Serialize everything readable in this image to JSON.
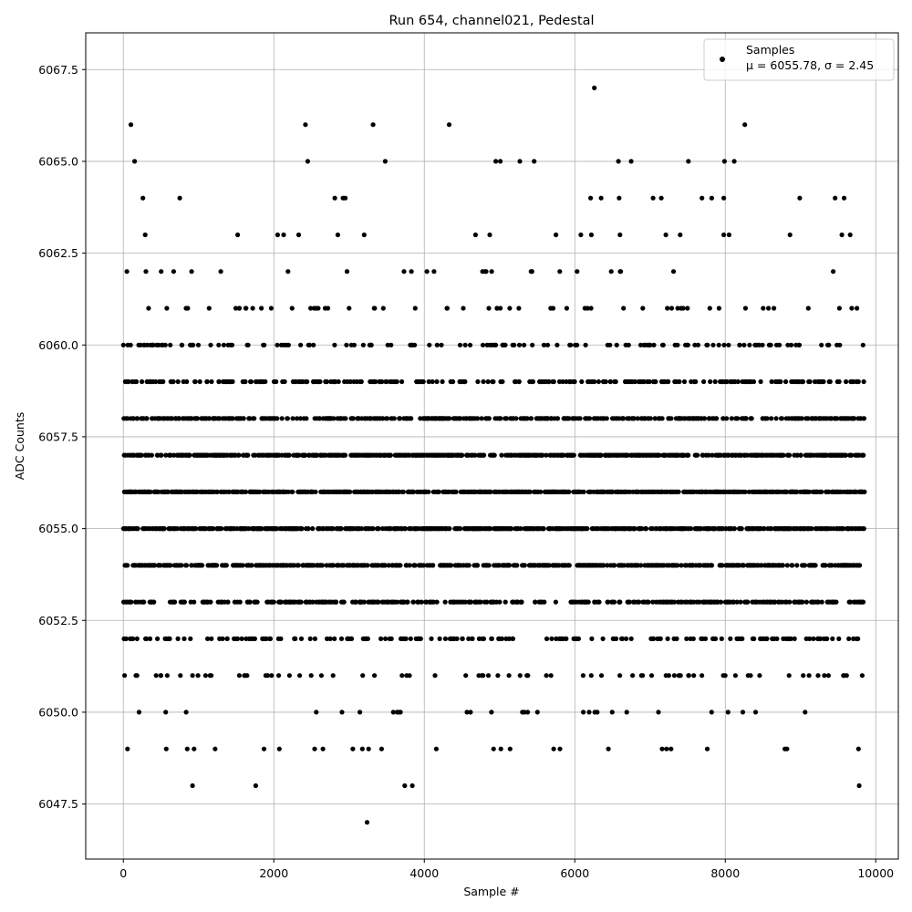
{
  "chart_data": {
    "type": "scatter",
    "title": "Run 654, channel021, Pedestal",
    "xlabel": "Sample #",
    "ylabel": "ADC Counts",
    "xlim": [
      -500,
      10300
    ],
    "ylim": [
      6046.0,
      6068.5
    ],
    "xticks": [
      0,
      2000,
      4000,
      6000,
      8000,
      10000
    ],
    "xtick_labels": [
      "0",
      "2000",
      "4000",
      "6000",
      "8000",
      "10000"
    ],
    "yticks": [
      6047.5,
      6050.0,
      6052.5,
      6055.0,
      6057.5,
      6060.0,
      6062.5,
      6065.0,
      6067.5
    ],
    "ytick_labels": [
      "6047.5",
      "6050.0",
      "6052.5",
      "6055.0",
      "6057.5",
      "6060.0",
      "6062.5",
      "6065.0",
      "6067.5"
    ],
    "grid": true,
    "legend": {
      "position": "top-right",
      "entries": [
        {
          "label": "Samples",
          "stats": "μ = 6055.78, σ = 2.45"
        }
      ]
    },
    "marker_color": "#000000",
    "series": [
      {
        "name": "Samples",
        "x_range": [
          0,
          9850
        ],
        "mean": 6055.78,
        "std": 2.45,
        "points": [
          [
            100,
            6066
          ],
          [
            150,
            6065
          ],
          [
            260,
            6064
          ],
          [
            290,
            6063
          ],
          [
            300,
            6062
          ],
          [
            280,
            6060
          ],
          [
            60,
            6060
          ],
          [
            55,
            6049
          ],
          [
            920,
            6048
          ],
          [
            750,
            6064
          ],
          [
            780,
            6060
          ],
          [
            1760,
            6048
          ],
          [
            2420,
            6066
          ],
          [
            2450,
            6065
          ],
          [
            2330,
            6063
          ],
          [
            2810,
            6064
          ],
          [
            2920,
            6064
          ],
          [
            2950,
            6064
          ],
          [
            2850,
            6063
          ],
          [
            3240,
            6047
          ],
          [
            3320,
            6066
          ],
          [
            3480,
            6065
          ],
          [
            3740,
            6048
          ],
          [
            3840,
            6048
          ],
          [
            4330,
            6066
          ],
          [
            4950,
            6065
          ],
          [
            5010,
            6065
          ],
          [
            5270,
            6065
          ],
          [
            5460,
            6065
          ],
          [
            6260,
            6067
          ],
          [
            6210,
            6064
          ],
          [
            6350,
            6064
          ],
          [
            6580,
            6065
          ],
          [
            6590,
            6064
          ],
          [
            6750,
            6065
          ],
          [
            7040,
            6064
          ],
          [
            7150,
            6064
          ],
          [
            7510,
            6065
          ],
          [
            7690,
            6064
          ],
          [
            7820,
            6064
          ],
          [
            7990,
            6065
          ],
          [
            7980,
            6064
          ],
          [
            8120,
            6065
          ],
          [
            8260,
            6066
          ],
          [
            8990,
            6064
          ],
          [
            9460,
            6064
          ],
          [
            9580,
            6064
          ],
          [
            9550,
            6063
          ],
          [
            9660,
            6063
          ],
          [
            9780,
            6048
          ],
          [
            9770,
            6049
          ],
          [
            8820,
            6049
          ],
          [
            7760,
            6049
          ],
          [
            7220,
            6049
          ],
          [
            7280,
            6049
          ],
          [
            7160,
            6049
          ],
          [
            5720,
            6049
          ],
          [
            5140,
            6049
          ],
          [
            4920,
            6049
          ],
          [
            4160,
            6049
          ],
          [
            3050,
            6049
          ],
          [
            3260,
            6049
          ],
          [
            1870,
            6049
          ],
          [
            1220,
            6049
          ],
          [
            570,
            6049
          ],
          [
            940,
            6049
          ],
          [
            3200,
            6063
          ],
          [
            6080,
            6063
          ],
          [
            6220,
            6063
          ],
          [
            6600,
            6063
          ],
          [
            7210,
            6063
          ],
          [
            7400,
            6063
          ],
          [
            7980,
            6063
          ],
          [
            8050,
            6063
          ],
          [
            8860,
            6063
          ],
          [
            5750,
            6063
          ],
          [
            4680,
            6063
          ],
          [
            4870,
            6063
          ],
          [
            1520,
            6063
          ],
          [
            2050,
            6063
          ],
          [
            2130,
            6063
          ]
        ]
      }
    ]
  }
}
